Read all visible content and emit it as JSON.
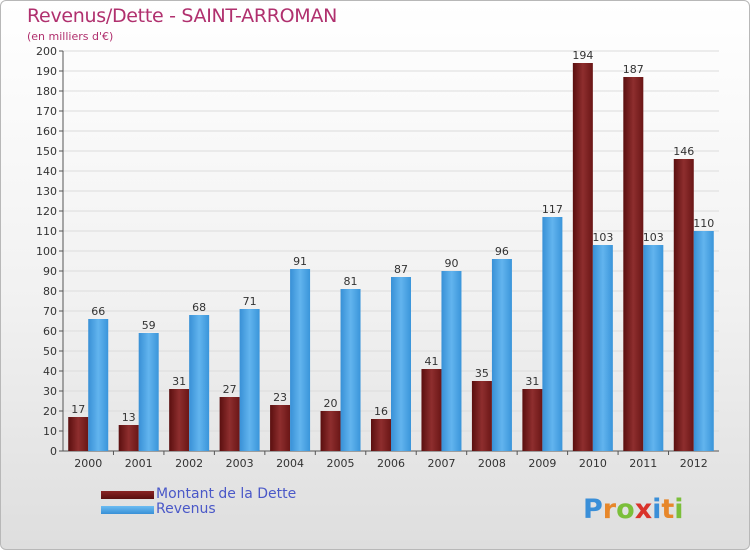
{
  "title": "Revenus/Dette - SAINT-ARROMAN",
  "subtitle": "(en milliers d'€)",
  "brand": "Proxiti",
  "colors": {
    "dette": "#7a1f1f",
    "revenus": "#4aa3e4",
    "title": "#b0306e",
    "legend_text": "#4a58c8"
  },
  "chart_data": {
    "type": "bar",
    "title": "Revenus/Dette - SAINT-ARROMAN",
    "subtitle": "(en milliers d'€)",
    "categories": [
      "2000",
      "2001",
      "2002",
      "2003",
      "2004",
      "2005",
      "2006",
      "2007",
      "2008",
      "2009",
      "2010",
      "2011",
      "2012"
    ],
    "series": [
      {
        "name": "Montant de la Dette",
        "values": [
          17,
          13,
          31,
          27,
          23,
          20,
          16,
          41,
          35,
          31,
          194,
          187,
          146
        ]
      },
      {
        "name": "Revenus",
        "values": [
          66,
          59,
          68,
          71,
          91,
          81,
          87,
          90,
          96,
          117,
          103,
          103,
          110
        ]
      }
    ],
    "ylim": [
      0,
      200
    ],
    "ytick_step": 10,
    "grid": true,
    "legend": "bottom-left"
  }
}
